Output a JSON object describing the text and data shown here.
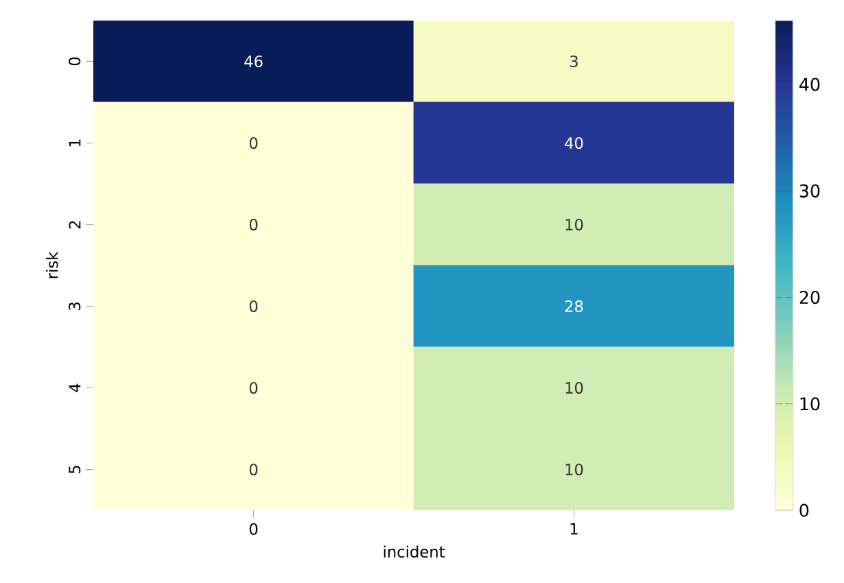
{
  "chart_data": {
    "type": "heatmap",
    "xlabel": "incident",
    "ylabel": "risk",
    "categories": [
      "0",
      "1"
    ],
    "y_categories": [
      "0",
      "1",
      "2",
      "3",
      "4",
      "5"
    ],
    "cells": [
      [
        46,
        3
      ],
      [
        0,
        40
      ],
      [
        0,
        10
      ],
      [
        0,
        28
      ],
      [
        0,
        10
      ],
      [
        0,
        10
      ]
    ],
    "data_labels": true,
    "clim": [
      0,
      46
    ],
    "cticks": [
      0,
      10,
      20,
      30,
      40
    ]
  }
}
